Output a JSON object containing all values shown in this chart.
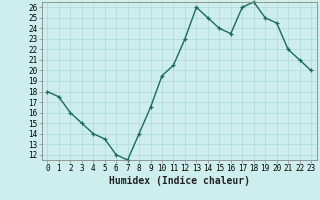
{
  "x": [
    0,
    1,
    2,
    3,
    4,
    5,
    6,
    7,
    8,
    9,
    10,
    11,
    12,
    13,
    14,
    15,
    16,
    17,
    18,
    19,
    20,
    21,
    22,
    23
  ],
  "y": [
    18,
    17.5,
    16,
    15,
    14,
    13.5,
    12,
    11.5,
    14,
    16.5,
    19.5,
    20.5,
    23,
    26,
    25,
    24,
    23.5,
    26,
    26.5,
    25,
    24.5,
    22,
    21,
    20
  ],
  "line_color": "#1a6b5a",
  "marker": "+",
  "background_color": "#ceeeed",
  "grid_major_color": "#b0d8d8",
  "grid_minor_color": "#c8e8e8",
  "xlabel": "Humidex (Indice chaleur)",
  "xlim": [
    -0.5,
    23.5
  ],
  "ylim": [
    11.5,
    26.5
  ],
  "yticks": [
    12,
    13,
    14,
    15,
    16,
    17,
    18,
    19,
    20,
    21,
    22,
    23,
    24,
    25,
    26
  ],
  "xticks": [
    0,
    1,
    2,
    3,
    4,
    5,
    6,
    7,
    8,
    9,
    10,
    11,
    12,
    13,
    14,
    15,
    16,
    17,
    18,
    19,
    20,
    21,
    22,
    23
  ],
  "tick_fontsize": 5.5,
  "label_fontsize": 7,
  "line_width": 1.0,
  "marker_size": 3.5,
  "spine_color": "#888888"
}
